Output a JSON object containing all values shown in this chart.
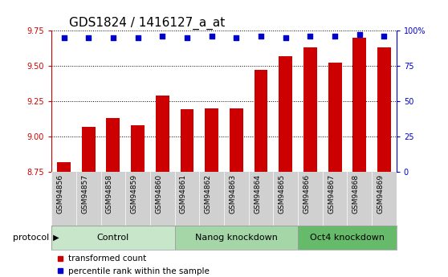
{
  "title": "GDS1824 / 1416127_a_at",
  "samples": [
    "GSM94856",
    "GSM94857",
    "GSM94858",
    "GSM94859",
    "GSM94860",
    "GSM94861",
    "GSM94862",
    "GSM94863",
    "GSM94864",
    "GSM94865",
    "GSM94866",
    "GSM94867",
    "GSM94868",
    "GSM94869"
  ],
  "red_values": [
    8.82,
    9.07,
    9.13,
    9.08,
    9.29,
    9.19,
    9.2,
    9.2,
    9.47,
    9.57,
    9.63,
    9.52,
    9.7,
    9.63
  ],
  "blue_values": [
    95,
    95,
    95,
    95,
    96,
    95,
    96,
    95,
    96,
    95,
    96,
    96,
    97,
    96
  ],
  "groups": [
    {
      "label": "Control",
      "start": 0,
      "end": 5,
      "color": "#c8e6c9"
    },
    {
      "label": "Nanog knockdown",
      "start": 5,
      "end": 10,
      "color": "#a5d6a7"
    },
    {
      "label": "Oct4 knockdown",
      "start": 10,
      "end": 14,
      "color": "#66bb6a"
    }
  ],
  "ylim_left": [
    8.75,
    9.75
  ],
  "ylim_right": [
    0,
    100
  ],
  "yticks_left": [
    8.75,
    9.0,
    9.25,
    9.5,
    9.75
  ],
  "yticks_right": [
    0,
    25,
    50,
    75,
    100
  ],
  "ytick_labels_right": [
    "0",
    "25",
    "50",
    "75",
    "100%"
  ],
  "bar_color": "#cc0000",
  "dot_color": "#0000cc",
  "grid_color": "#000000",
  "bg_color": "#ffffff",
  "xtick_bg_color": "#d0d0d0",
  "protocol_label": "protocol",
  "legend_red": "transformed count",
  "legend_blue": "percentile rank within the sample",
  "title_fontsize": 11,
  "tick_fontsize": 7,
  "group_fontsize": 8,
  "legend_fontsize": 7.5
}
